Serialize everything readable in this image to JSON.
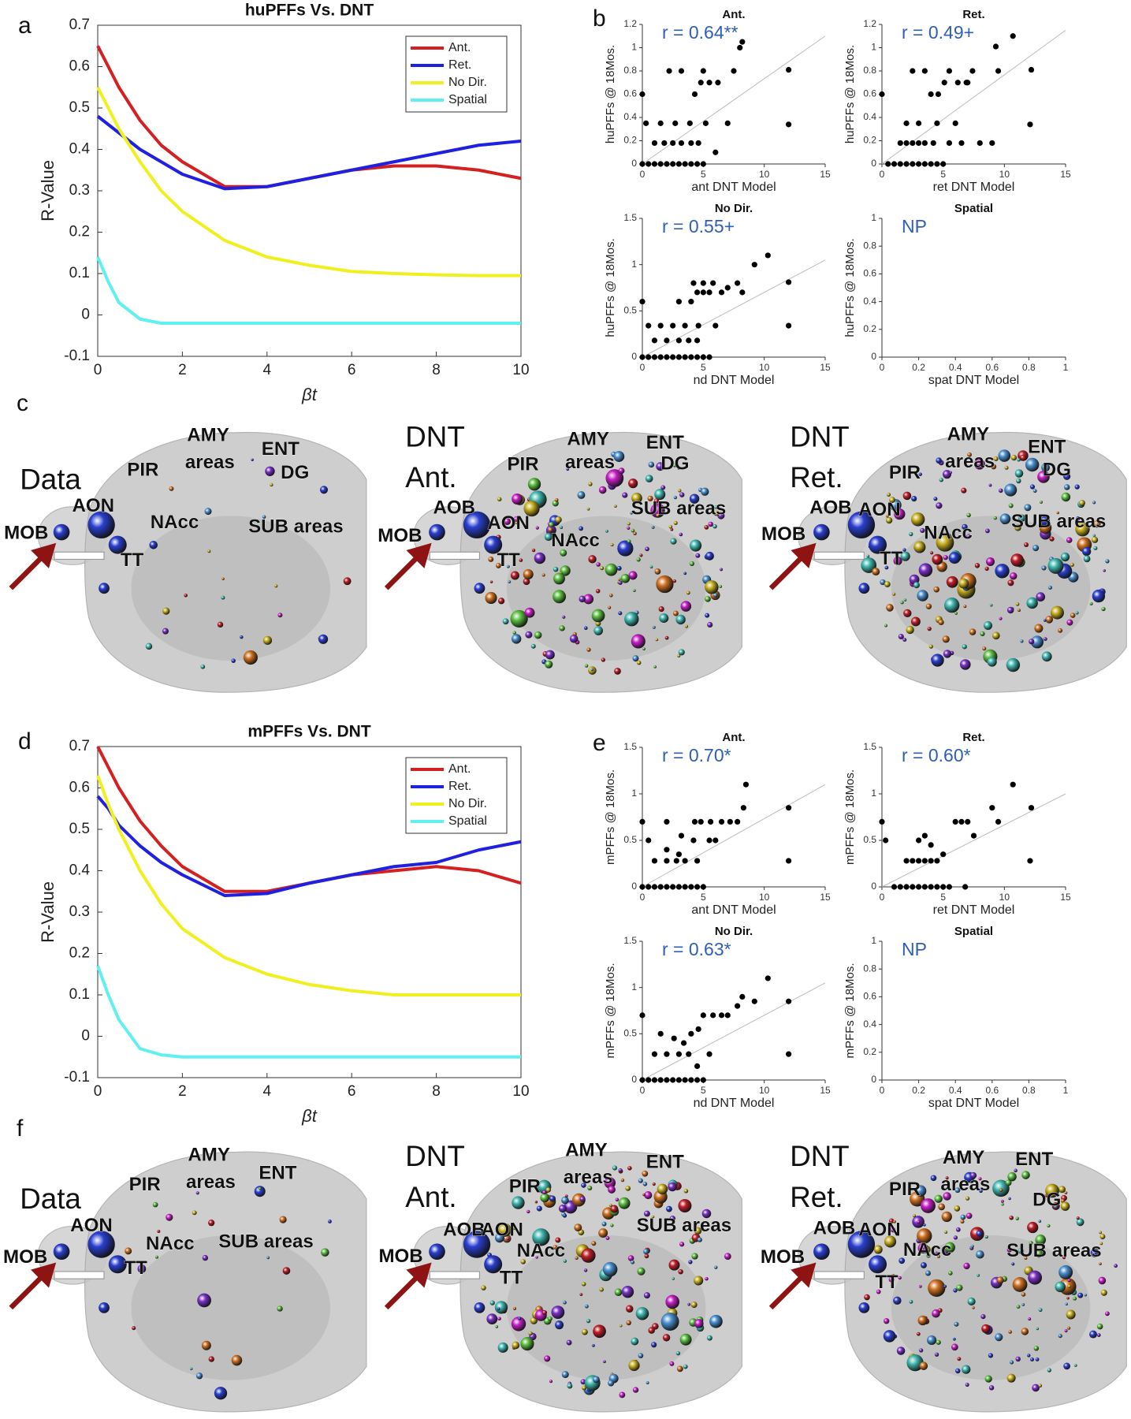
{
  "panel_labels": [
    "a",
    "b",
    "c",
    "d",
    "e",
    "f"
  ],
  "chart_data": [
    {
      "type": "line",
      "title": "huPFFs Vs. DNT",
      "xlabel": "βt",
      "ylabel": "R-Value",
      "x": [
        0,
        0.25,
        0.5,
        1,
        1.5,
        2,
        3,
        4,
        5,
        6,
        7,
        8,
        9,
        10
      ],
      "series": [
        {
          "name": "Ant.",
          "color": "#d42020",
          "values": [
            0.65,
            0.6,
            0.55,
            0.47,
            0.41,
            0.37,
            0.31,
            0.31,
            0.33,
            0.35,
            0.36,
            0.36,
            0.35,
            0.33
          ]
        },
        {
          "name": "Ret.",
          "color": "#2020e0",
          "values": [
            0.48,
            0.46,
            0.44,
            0.4,
            0.37,
            0.34,
            0.305,
            0.31,
            0.33,
            0.35,
            0.37,
            0.39,
            0.41,
            0.42
          ]
        },
        {
          "name": "No Dir.",
          "color": "#f0f020",
          "values": [
            0.55,
            0.5,
            0.45,
            0.37,
            0.3,
            0.25,
            0.18,
            0.14,
            0.12,
            0.105,
            0.1,
            0.097,
            0.095,
            0.095
          ]
        },
        {
          "name": "Spatial",
          "color": "#60f0f0",
          "values": [
            0.14,
            0.08,
            0.03,
            -0.01,
            -0.02,
            -0.02,
            -0.02,
            -0.02,
            -0.02,
            -0.02,
            -0.02,
            -0.02,
            -0.02,
            -0.02
          ]
        }
      ],
      "xlim": [
        0,
        10
      ],
      "ylim": [
        -0.1,
        0.7
      ],
      "xticks": [
        0,
        2,
        4,
        6,
        8,
        10
      ],
      "yticks": [
        -0.1,
        0,
        0.1,
        0.2,
        0.3,
        0.4,
        0.5,
        0.6,
        0.7
      ],
      "legend": "upper right"
    },
    {
      "type": "scatter",
      "title": "Ant.",
      "annotation": "r = 0.64**",
      "xlabel": "ant DNT Model",
      "ylabel": "huPFFs @ 18Mos.",
      "xlim": [
        0,
        15
      ],
      "ylim": [
        0,
        1.2
      ],
      "xticks": [
        0,
        5,
        10,
        15
      ],
      "yticks": [
        0,
        0.2,
        0.4,
        0.6,
        0.8,
        1,
        1.2
      ],
      "color": "#000000",
      "x": [
        0,
        0.5,
        1,
        1.5,
        2,
        2.5,
        3,
        3.5,
        4,
        4.5,
        5,
        1,
        1.8,
        2.5,
        3.2,
        4,
        4.6,
        0.3,
        1.5,
        2.7,
        3.9,
        5.2,
        7,
        4.3,
        4.8,
        5.5,
        6.2,
        2.2,
        3.2,
        5,
        7.5,
        8,
        8.2,
        0,
        6,
        12,
        12
      ],
      "y": [
        0,
        0,
        0,
        0,
        0,
        0,
        0,
        0,
        0,
        0,
        0,
        0.18,
        0.18,
        0.18,
        0.18,
        0.18,
        0.18,
        0.35,
        0.35,
        0.35,
        0.35,
        0.35,
        0.35,
        0.6,
        0.7,
        0.7,
        0.7,
        0.8,
        0.8,
        0.8,
        0.8,
        1,
        1.05,
        0.6,
        0.1,
        0.81,
        0.34
      ],
      "trend_line": {
        "x": [
          0,
          15
        ],
        "y": [
          0,
          1.1
        ]
      }
    },
    {
      "type": "scatter",
      "title": "Ret.",
      "annotation": "r = 0.49+",
      "xlabel": "ret DNT Model",
      "ylabel": "huPFFs @ 18Mos.",
      "xlim": [
        0,
        15
      ],
      "ylim": [
        0,
        1.2
      ],
      "xticks": [
        0,
        5,
        10,
        15
      ],
      "yticks": [
        0,
        0.2,
        0.4,
        0.6,
        0.8,
        1,
        1.2
      ],
      "color": "#000000",
      "x": [
        0.5,
        1,
        1.5,
        2,
        2.5,
        3,
        3.5,
        4,
        4.5,
        5,
        1.5,
        2,
        2.5,
        3,
        3.5,
        4.2,
        5.5,
        2,
        3,
        4.5,
        6,
        6.5,
        8,
        9,
        4,
        4.6,
        5.1,
        6.2,
        6.9,
        2.5,
        3.5,
        5.5,
        7,
        7.4,
        9.3,
        9.5,
        10.7,
        12.2,
        12.1,
        0
      ],
      "y": [
        0,
        0,
        0,
        0,
        0,
        0,
        0,
        0,
        0,
        0,
        0.18,
        0.18,
        0.18,
        0.18,
        0.18,
        0.18,
        0.18,
        0.35,
        0.35,
        0.35,
        0.35,
        0.18,
        0.18,
        0.18,
        0.6,
        0.6,
        0.7,
        0.7,
        0.7,
        0.8,
        0.8,
        0.8,
        0.7,
        0.8,
        1.01,
        0.8,
        1.1,
        0.81,
        0.34,
        0.6
      ],
      "trend_line": {
        "x": [
          0,
          15
        ],
        "y": [
          0,
          1.15
        ]
      }
    },
    {
      "type": "scatter",
      "title": "No Dir.",
      "annotation": "r = 0.55+",
      "xlabel": "nd DNT Model",
      "ylabel": "huPFFs @ 18Mos.",
      "xlim": [
        0,
        15
      ],
      "ylim": [
        0,
        1.5
      ],
      "xticks": [
        0,
        5,
        10,
        15
      ],
      "yticks": [
        0,
        0.5,
        1,
        1.5
      ],
      "color": "#000000",
      "x": [
        0,
        0.5,
        1,
        1.5,
        2,
        2.5,
        3,
        3.5,
        4,
        4.5,
        5,
        5.5,
        1,
        2,
        3,
        3.8,
        4.5,
        0.5,
        1.5,
        2.5,
        3.5,
        4.6,
        6,
        3,
        4,
        4.5,
        5,
        5.5,
        6.5,
        4.2,
        5,
        5.8,
        7,
        7.8,
        8.2,
        9.2,
        10.3,
        12,
        12,
        0
      ],
      "y": [
        0,
        0,
        0,
        0,
        0,
        0,
        0,
        0,
        0,
        0,
        0,
        0,
        0.18,
        0.18,
        0.18,
        0.18,
        0.18,
        0.34,
        0.34,
        0.34,
        0.34,
        0.34,
        0.34,
        0.6,
        0.6,
        0.7,
        0.7,
        0.7,
        0.7,
        0.8,
        0.8,
        0.8,
        0.75,
        0.8,
        0.7,
        1,
        1.1,
        0.81,
        0.34,
        0.6
      ],
      "trend_line": {
        "x": [
          0,
          15
        ],
        "y": [
          0,
          1.05
        ]
      }
    },
    {
      "type": "scatter",
      "title": "Spatial",
      "annotation": "NP",
      "xlabel": "spat DNT Model",
      "ylabel": "huPFFs @ 18Mos.",
      "xlim": [
        0,
        1
      ],
      "ylim": [
        0,
        1
      ],
      "xticks": [
        0,
        0.2,
        0.4,
        0.6,
        0.8,
        1
      ],
      "yticks": [
        0,
        0.2,
        0.4,
        0.6,
        0.8,
        1
      ]
    },
    {
      "type": "line",
      "title": "mPFFs Vs. DNT",
      "xlabel": "βt",
      "ylabel": "R-Value",
      "x": [
        0,
        0.25,
        0.5,
        1,
        1.5,
        2,
        3,
        4,
        5,
        6,
        7,
        8,
        9,
        10
      ],
      "series": [
        {
          "name": "Ant.",
          "color": "#d42020",
          "values": [
            0.7,
            0.65,
            0.6,
            0.52,
            0.46,
            0.41,
            0.35,
            0.35,
            0.37,
            0.39,
            0.4,
            0.41,
            0.4,
            0.37
          ]
        },
        {
          "name": "Ret.",
          "color": "#2020e0",
          "values": [
            0.58,
            0.55,
            0.51,
            0.46,
            0.42,
            0.39,
            0.34,
            0.345,
            0.37,
            0.39,
            0.41,
            0.42,
            0.45,
            0.47
          ]
        },
        {
          "name": "No Dir.",
          "color": "#f0f020",
          "values": [
            0.63,
            0.56,
            0.5,
            0.4,
            0.32,
            0.26,
            0.19,
            0.15,
            0.125,
            0.11,
            0.1,
            0.1,
            0.1,
            0.1
          ]
        },
        {
          "name": "Spatial",
          "color": "#60f0f0",
          "values": [
            0.17,
            0.1,
            0.04,
            -0.03,
            -0.045,
            -0.05,
            -0.05,
            -0.05,
            -0.05,
            -0.05,
            -0.05,
            -0.05,
            -0.05,
            -0.05
          ]
        }
      ],
      "xlim": [
        0,
        10
      ],
      "ylim": [
        -0.1,
        0.7
      ],
      "xticks": [
        0,
        2,
        4,
        6,
        8,
        10
      ],
      "yticks": [
        -0.1,
        0,
        0.1,
        0.2,
        0.3,
        0.4,
        0.5,
        0.6,
        0.7
      ],
      "legend": "upper right"
    },
    {
      "type": "scatter",
      "title": "Ant.",
      "annotation": "r = 0.70*",
      "xlabel": "ant DNT Model",
      "ylabel": "mPFFs @ 18Mos.",
      "xlim": [
        0,
        15
      ],
      "ylim": [
        0,
        1.5
      ],
      "xticks": [
        0,
        5,
        10,
        15
      ],
      "yticks": [
        0,
        0.5,
        1,
        1.5
      ],
      "color": "#000000",
      "x": [
        0,
        0.5,
        1,
        1.5,
        2,
        2.5,
        3,
        3.5,
        4,
        4.5,
        5,
        1,
        2,
        2.8,
        3.5,
        4.5,
        0.5,
        2,
        3,
        4.2,
        5.5,
        4.3,
        4.8,
        5.6,
        6.5,
        7.2,
        2,
        3.2,
        6,
        7.8,
        8.3,
        8.5,
        0,
        12,
        12
      ],
      "y": [
        0,
        0,
        0,
        0,
        0,
        0,
        0,
        0,
        0,
        0,
        0,
        0.28,
        0.28,
        0.28,
        0.28,
        0.28,
        0.5,
        0.4,
        0.35,
        0.5,
        0.5,
        0.7,
        0.7,
        0.7,
        0.7,
        0.7,
        0.7,
        0.55,
        0.5,
        0.7,
        0.85,
        1.1,
        0.7,
        0.85,
        0.28
      ],
      "trend_line": {
        "x": [
          0,
          15
        ],
        "y": [
          0,
          1.1
        ]
      }
    },
    {
      "type": "scatter",
      "title": "Ret.",
      "annotation": "r = 0.60*",
      "xlabel": "ret DNT Model",
      "ylabel": "mPFFs @ 18Mos.",
      "xlim": [
        0,
        15
      ],
      "ylim": [
        0,
        1.5
      ],
      "xticks": [
        0,
        5,
        10,
        15
      ],
      "yticks": [
        0,
        0.5,
        1,
        1.5
      ],
      "color": "#000000",
      "x": [
        1,
        1.5,
        2,
        2.5,
        3,
        3.5,
        4,
        4.5,
        5,
        5.5,
        2,
        2.5,
        3,
        3.5,
        4,
        4.5,
        3,
        3.5,
        4,
        5,
        6,
        6.5,
        7,
        7.5,
        9,
        9.5,
        10.7,
        12.2,
        12.1,
        0,
        0.3,
        6.8
      ],
      "y": [
        0,
        0,
        0,
        0,
        0,
        0,
        0,
        0,
        0,
        0,
        0.28,
        0.28,
        0.28,
        0.28,
        0.28,
        0.28,
        0.5,
        0.55,
        0.45,
        0.35,
        0.7,
        0.7,
        0.7,
        0.55,
        0.85,
        0.7,
        1.1,
        0.85,
        0.28,
        0.7,
        0.5,
        0
      ],
      "trend_line": {
        "x": [
          0,
          15
        ],
        "y": [
          0,
          1
        ]
      }
    },
    {
      "type": "scatter",
      "title": "No Dir.",
      "annotation": "r = 0.63*",
      "xlabel": "nd DNT Model",
      "ylabel": "mPFFs @ 18Mos.",
      "xlim": [
        0,
        15
      ],
      "ylim": [
        0,
        1.5
      ],
      "xticks": [
        0,
        5,
        10,
        15
      ],
      "yticks": [
        0,
        0.5,
        1,
        1.5
      ],
      "color": "#000000",
      "x": [
        0,
        0.5,
        1,
        1.5,
        2,
        2.5,
        3,
        3.5,
        4,
        4.5,
        5,
        1,
        2,
        3,
        3.8,
        4.5,
        5.5,
        1.5,
        2.6,
        3.4,
        4.6,
        4,
        5,
        5.8,
        6.5,
        7,
        7.8,
        8.2,
        9.2,
        10.3,
        12,
        12,
        0
      ],
      "y": [
        0,
        0,
        0,
        0,
        0,
        0,
        0,
        0,
        0,
        0,
        0,
        0.28,
        0.28,
        0.28,
        0.28,
        0.15,
        0.28,
        0.5,
        0.45,
        0.4,
        0.55,
        0.5,
        0.7,
        0.7,
        0.7,
        0.7,
        0.8,
        0.9,
        0.85,
        1.1,
        0.85,
        0.28,
        0.7
      ],
      "trend_line": {
        "x": [
          0,
          15
        ],
        "y": [
          0,
          1.05
        ]
      }
    },
    {
      "type": "scatter",
      "title": "Spatial",
      "annotation": "NP",
      "xlabel": "spat DNT Model",
      "ylabel": "mPFFs @ 18Mos.",
      "xlim": [
        0,
        1
      ],
      "ylim": [
        0,
        1
      ],
      "xticks": [
        0,
        0.2,
        0.4,
        0.6,
        0.8,
        1
      ],
      "yticks": [
        0,
        0.2,
        0.4,
        0.6,
        0.8,
        1
      ]
    }
  ],
  "brain_panels": [
    {
      "heading": [
        "Data"
      ],
      "labels": [
        "MOB",
        "AON",
        "PIR",
        "AMY",
        "areas",
        "ENT",
        "DG",
        "NAcc",
        "SUB areas",
        "TT"
      ]
    },
    {
      "heading": [
        "DNT",
        "Ant."
      ],
      "labels": [
        "AMY",
        "areas",
        "ENT",
        "DG",
        "PIR",
        "AOB",
        "AON",
        "MOB",
        "NAcc",
        "SUB areas",
        "TT"
      ]
    },
    {
      "heading": [
        "DNT",
        "Ret."
      ],
      "labels": [
        "AMY",
        "areas",
        "ENT",
        "DG",
        "PIR",
        "AOB",
        "AON",
        "MOB",
        "NAcc",
        "SUB areas",
        "TT"
      ]
    },
    {
      "heading": [
        "Data"
      ],
      "labels": [
        "MOB",
        "AON",
        "PIR",
        "AMY",
        "areas",
        "ENT",
        "NAcc",
        "SUB areas",
        "TT"
      ]
    },
    {
      "heading": [
        "DNT",
        "Ant."
      ],
      "labels": [
        "AMY",
        "areas",
        "ENT",
        "PIR",
        "AOB",
        "AON",
        "MOB",
        "NAcc",
        "SUB areas",
        "TT"
      ]
    },
    {
      "heading": [
        "DNT",
        "Ret."
      ],
      "labels": [
        "AMY",
        "areas",
        "ENT",
        "DG",
        "PIR",
        "AOB",
        "AON",
        "MOB",
        "NAcc",
        "SUB areas",
        "TT"
      ]
    }
  ]
}
